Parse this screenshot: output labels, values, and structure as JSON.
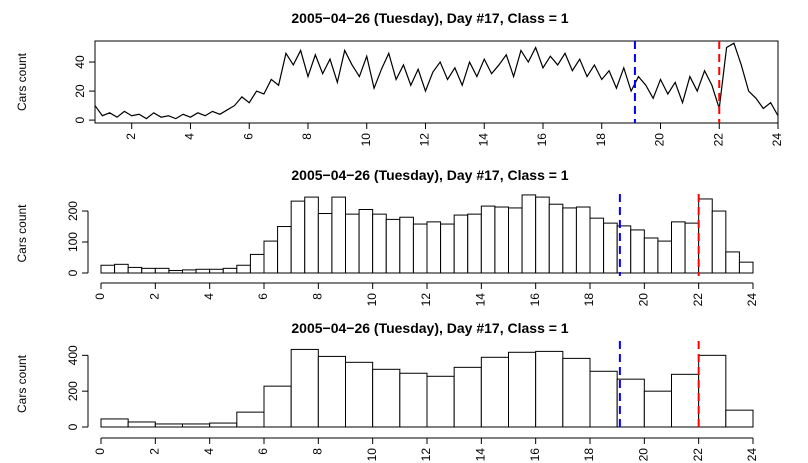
{
  "chart_data": [
    {
      "type": "line",
      "title": "2005−04−26 (Tuesday), Day #17, Class = 1",
      "ylabel": "Cars count",
      "x": [
        0.75,
        1,
        1.25,
        1.5,
        1.75,
        2,
        2.25,
        2.5,
        2.75,
        3,
        3.25,
        3.5,
        3.75,
        4,
        4.25,
        4.5,
        4.75,
        5,
        5.25,
        5.5,
        5.75,
        6,
        6.25,
        6.5,
        6.75,
        7,
        7.25,
        7.5,
        7.75,
        8,
        8.25,
        8.5,
        8.75,
        9,
        9.25,
        9.5,
        9.75,
        10,
        10.25,
        10.5,
        10.75,
        11,
        11.25,
        11.5,
        11.75,
        12,
        12.25,
        12.5,
        12.75,
        13,
        13.25,
        13.5,
        13.75,
        14,
        14.25,
        14.5,
        14.75,
        15,
        15.25,
        15.5,
        15.75,
        16,
        16.25,
        16.5,
        16.75,
        17,
        17.25,
        17.5,
        17.75,
        18,
        18.25,
        18.5,
        18.75,
        19,
        19.25,
        19.5,
        19.75,
        20,
        20.25,
        20.5,
        20.75,
        21,
        21.25,
        21.5,
        21.75,
        22,
        22.25,
        22.5,
        22.75,
        23,
        23.25,
        23.5,
        23.75,
        24
      ],
      "values": [
        10,
        3,
        5,
        2,
        6,
        3,
        4,
        1,
        5,
        2,
        3,
        1,
        4,
        2,
        5,
        3,
        6,
        4,
        7,
        10,
        16,
        12,
        20,
        18,
        28,
        24,
        46,
        38,
        48,
        30,
        45,
        32,
        42,
        26,
        48,
        38,
        30,
        44,
        22,
        35,
        46,
        28,
        38,
        24,
        35,
        20,
        33,
        40,
        28,
        36,
        24,
        40,
        30,
        42,
        32,
        38,
        45,
        30,
        48,
        40,
        50,
        36,
        44,
        38,
        46,
        34,
        42,
        30,
        38,
        28,
        34,
        22,
        36,
        20,
        30,
        24,
        15,
        28,
        18,
        26,
        12,
        30,
        20,
        34,
        24,
        8,
        50,
        53,
        38,
        20,
        15,
        8,
        12,
        3
      ],
      "color": "#000000",
      "xlim": [
        0.75,
        24
      ],
      "xticks": [
        2,
        4,
        6,
        8,
        10,
        12,
        14,
        16,
        18,
        20,
        22,
        24
      ],
      "ylim": [
        -2,
        54.5
      ],
      "yticks": [
        0,
        20,
        40
      ],
      "vlines": [
        {
          "x": 19.13,
          "color": "#0000ff"
        },
        {
          "x": 22,
          "color": "#ff0000"
        }
      ]
    },
    {
      "type": "histogram",
      "title": "2005−04−26 (Tuesday), Day #17, Class = 1",
      "ylabel": "Cars count",
      "bins": [
        0,
        0.5,
        1,
        1.5,
        2,
        2.5,
        3,
        3.5,
        4,
        4.5,
        5,
        5.5,
        6,
        6.5,
        7,
        7.5,
        8,
        8.5,
        9,
        9.5,
        10,
        10.5,
        11,
        11.5,
        12,
        12.5,
        13,
        13.5,
        14,
        14.5,
        15,
        15.5,
        16,
        16.5,
        17,
        17.5,
        18,
        18.5,
        19,
        19.5,
        20,
        20.5,
        21,
        21.5,
        22,
        22.5,
        23,
        23.5,
        24
      ],
      "values": [
        25,
        28,
        18,
        15,
        15,
        8,
        10,
        12,
        12,
        15,
        25,
        60,
        103,
        150,
        232,
        245,
        192,
        245,
        190,
        205,
        190,
        173,
        180,
        158,
        165,
        158,
        187,
        190,
        216,
        213,
        210,
        252,
        245,
        222,
        210,
        213,
        177,
        161,
        152,
        139,
        113,
        103,
        165,
        161,
        239,
        200,
        68,
        35
      ],
      "xlim": [
        0,
        24
      ],
      "xticks": [
        0,
        2,
        4,
        6,
        8,
        10,
        12,
        14,
        16,
        18,
        20,
        22,
        24
      ],
      "ylim": [
        0,
        255
      ],
      "yticks": [
        0,
        100,
        200
      ],
      "vlines": [
        {
          "x": 19.1,
          "color": "#0000ff"
        },
        {
          "x": 22,
          "color": "#ff0000"
        }
      ]
    },
    {
      "type": "histogram",
      "title": "2005−04−26 (Tuesday), Day #17, Class = 1",
      "ylabel": "Cars count",
      "bins": [
        0,
        1,
        2,
        3,
        4,
        5,
        6,
        7,
        8,
        9,
        10,
        11,
        12,
        13,
        14,
        15,
        16,
        17,
        18,
        19,
        20,
        21,
        22,
        23,
        24
      ],
      "values": [
        45,
        28,
        17,
        17,
        22,
        83,
        228,
        433,
        394,
        361,
        322,
        300,
        283,
        333,
        389,
        417,
        422,
        383,
        311,
        267,
        200,
        294,
        400,
        94
      ],
      "xlim": [
        0,
        24
      ],
      "xticks": [
        0,
        2,
        4,
        6,
        8,
        10,
        12,
        14,
        16,
        18,
        20,
        22,
        24
      ],
      "ylim": [
        0,
        480
      ],
      "yticks": [
        0,
        200,
        400
      ],
      "vlines": [
        {
          "x": 19.1,
          "color": "#0000ff"
        },
        {
          "x": 22,
          "color": "#ff0000"
        }
      ]
    }
  ]
}
